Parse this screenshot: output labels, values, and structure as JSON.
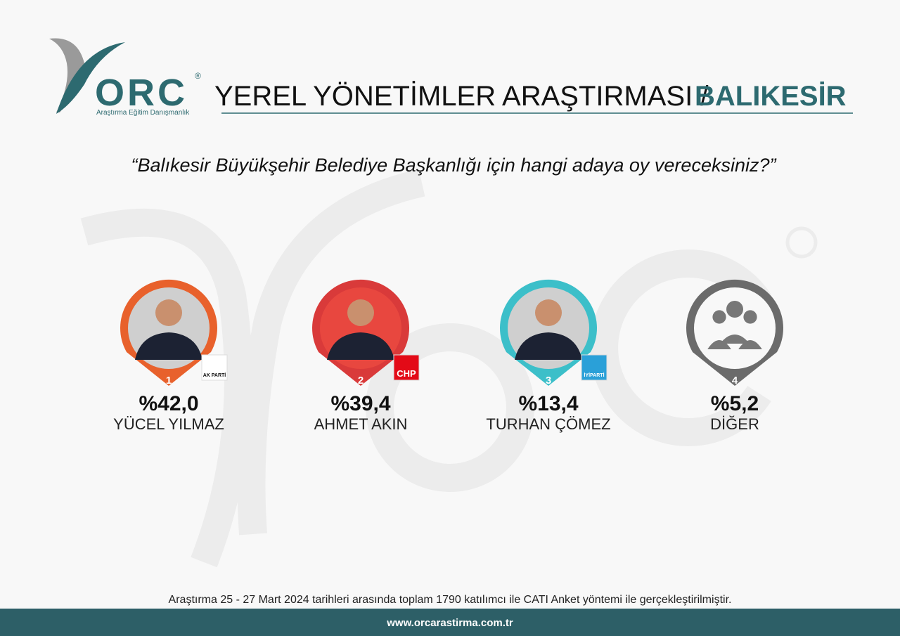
{
  "logo": {
    "brand": "ORC",
    "reg": "®",
    "tagline": "Araştırma Eğitim Danışmanlık"
  },
  "header": {
    "title": "YEREL YÖNETİMLER ARAŞTIRMASI /",
    "region": "BALIKESİR"
  },
  "question": "“Balıkesir Büyükşehir Belediye Başkanlığı için hangi adaya oy vereceksiniz?”",
  "candidates": [
    {
      "rank": "1",
      "share": "%42,0",
      "name": "YÜCEL YILMAZ",
      "party": "AK PARTİ"
    },
    {
      "rank": "2",
      "share": "%39,4",
      "name": "AHMET AKIN",
      "party": "CHP"
    },
    {
      "rank": "3",
      "share": "%13,4",
      "name": "TURHAN ÇÖMEZ",
      "party": "İYİPARTİ"
    },
    {
      "rank": "4",
      "share": "%5,2",
      "name": "DİĞER"
    }
  ],
  "footer": {
    "note": "Araştırma 25 - 27 Mart  2024 tarihleri arasında toplam 1790 katılımcı ile CATI Anket yöntemi ile gerçekleştirilmiştir.",
    "url": "www.orcarastirma.com.tr"
  }
}
